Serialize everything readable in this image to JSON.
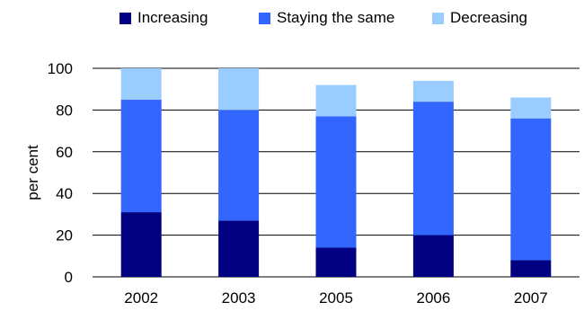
{
  "chart_data": {
    "type": "bar",
    "stacked": true,
    "title": "",
    "xlabel": "",
    "ylabel": "per cent",
    "ylim": [
      0,
      100
    ],
    "yticks": [
      0,
      20,
      40,
      60,
      80,
      100
    ],
    "grid": true,
    "legend_position": "top",
    "categories": [
      "2002",
      "2003",
      "2005",
      "2006",
      "2007"
    ],
    "series": [
      {
        "name": "Increasing",
        "color": "#000080",
        "values": [
          31,
          27,
          14,
          20,
          8
        ]
      },
      {
        "name": "Staying the same",
        "color": "#3366ff",
        "values": [
          54,
          53,
          63,
          64,
          68
        ]
      },
      {
        "name": "Decreasing",
        "color": "#99ccff",
        "values": [
          15,
          20,
          15,
          10,
          10
        ]
      }
    ]
  }
}
